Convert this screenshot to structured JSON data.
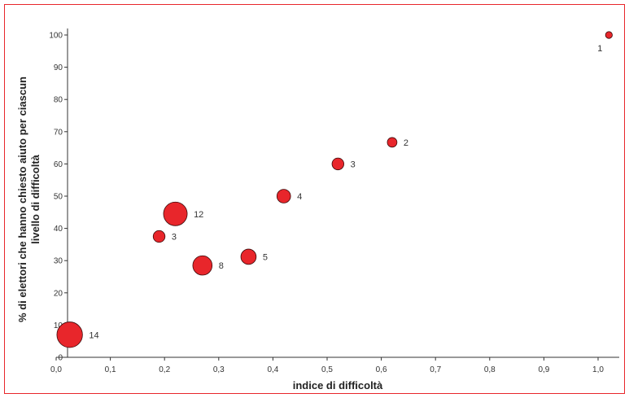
{
  "chart_data": {
    "type": "scatter",
    "variant": "bubble",
    "xlabel": "indice di difficoltà",
    "ylabel_line1": "% di elettori che hanno chiesto aiuto per ciascun",
    "ylabel_line2": "livello di difficoltà",
    "xlim": [
      0,
      1.05
    ],
    "ylim": [
      0,
      102
    ],
    "x_ticks": [
      "0,0",
      "0,1",
      "0,2",
      "0,3",
      "0,4",
      "0,5",
      "0,6",
      "0,7",
      "0,8",
      "0,9",
      "1,0"
    ],
    "y_ticks": [
      "0",
      "10",
      "20",
      "30",
      "40",
      "50",
      "60",
      "70",
      "80",
      "90",
      "100"
    ],
    "grid": false,
    "colors": {
      "bubble_fill": "#e8262b",
      "bubble_stroke": "#3a0a0a",
      "frame": "#e8262b"
    },
    "points": [
      {
        "x": 1.02,
        "y": 100,
        "size": 1,
        "label": "1"
      },
      {
        "x": 0.62,
        "y": 66.7,
        "size": 2,
        "label": "2"
      },
      {
        "x": 0.52,
        "y": 60,
        "size": 3,
        "label": "3"
      },
      {
        "x": 0.42,
        "y": 50,
        "size": 4,
        "label": "4"
      },
      {
        "x": 0.22,
        "y": 44.5,
        "size": 12,
        "label": "12"
      },
      {
        "x": 0.19,
        "y": 37.5,
        "size": 3,
        "label": "3"
      },
      {
        "x": 0.355,
        "y": 31.2,
        "size": 5,
        "label": "5"
      },
      {
        "x": 0.27,
        "y": 28.5,
        "size": 8,
        "label": "8"
      },
      {
        "x": 0.025,
        "y": 7,
        "size": 14,
        "label": "14"
      }
    ]
  }
}
